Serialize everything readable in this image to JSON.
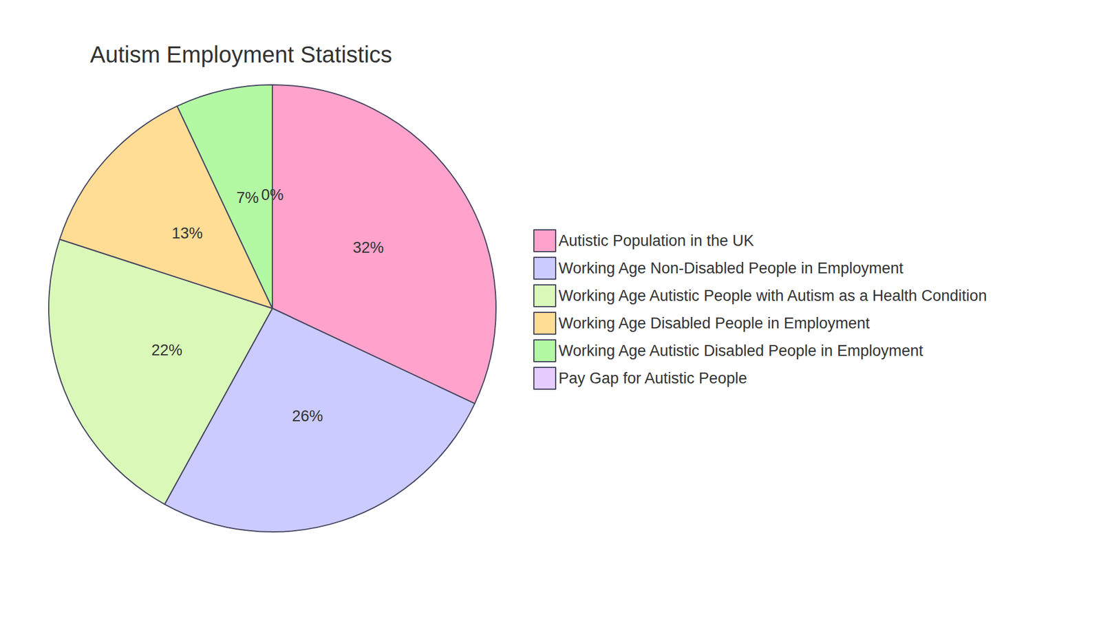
{
  "chart_data": {
    "type": "pie",
    "title": "Autism Employment Statistics",
    "categories": [
      "Autistic Population in the UK",
      "Working Age Non-Disabled People in Employment",
      "Working Age Autistic People with Autism as a Health Condition",
      "Working Age Disabled People in Employment",
      "Working Age Autistic Disabled People in Employment",
      "Pay Gap for Autistic People"
    ],
    "values": [
      32,
      26,
      22,
      13,
      7,
      0
    ],
    "value_labels": [
      "32%",
      "26%",
      "22%",
      "13%",
      "7%",
      "0%"
    ],
    "colors": [
      "#ffa3cc",
      "#cbcbff",
      "#daf9b9",
      "#ffdd95",
      "#b3f8a3",
      "#e6ccff"
    ],
    "data_labels": true,
    "legend": "right"
  }
}
